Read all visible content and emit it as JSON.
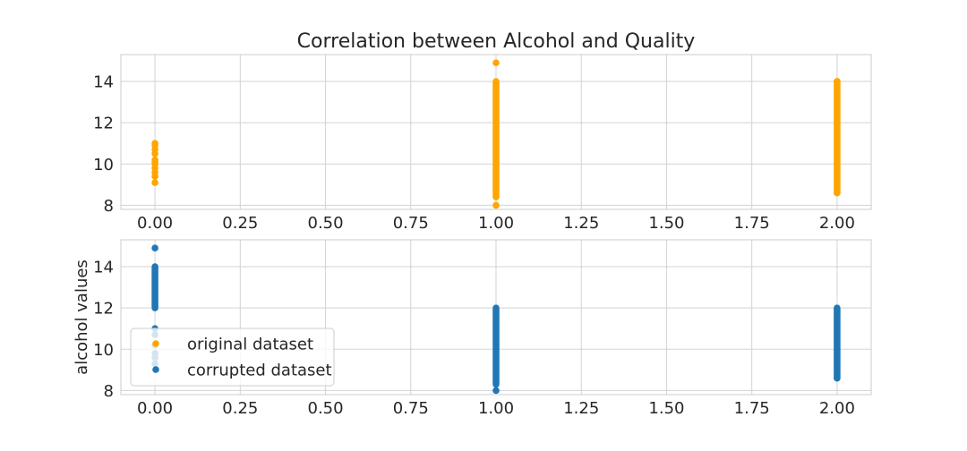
{
  "chart_data": {
    "type": "scatter",
    "title": "Correlation between Alcohol and Quality",
    "grid": true,
    "colors": {
      "original": "#ffa500",
      "corrupted": "#1f77b4"
    },
    "panels": [
      {
        "id": "top",
        "xlim": [
          -0.1,
          2.1
        ],
        "ylim": [
          7.8,
          15.3
        ],
        "xticks": [
          0,
          0.25,
          0.5,
          0.75,
          1,
          1.25,
          1.5,
          1.75,
          2
        ],
        "xtick_labels": [
          "0.00",
          "0.25",
          "0.50",
          "0.75",
          "1.00",
          "1.25",
          "1.50",
          "1.75",
          "2.00"
        ],
        "yticks": [
          8,
          10,
          12,
          14
        ],
        "ytick_labels": [
          "8",
          "10",
          "12",
          "14"
        ],
        "ylabel": "",
        "series": [
          {
            "name": "original dataset",
            "color": "#ffa500",
            "points": [
              [
                0,
                9.1
              ],
              [
                0,
                9.4
              ],
              [
                0,
                9.6
              ],
              [
                0,
                9.8
              ],
              [
                0,
                10.0
              ],
              [
                0,
                10.1
              ],
              [
                0,
                10.2
              ],
              [
                0,
                10.5
              ],
              [
                0,
                10.7
              ],
              [
                0,
                10.9
              ],
              [
                0,
                11.0
              ],
              [
                1,
                8.0
              ],
              [
                1,
                14.9
              ],
              [
                2,
                8.6
              ],
              [
                2,
                14.0
              ]
            ],
            "bands": [
              {
                "x": 1,
                "y_min": 8.4,
                "y_max": 14.0
              },
              {
                "x": 2,
                "y_min": 8.6,
                "y_max": 14.0
              }
            ]
          }
        ]
      },
      {
        "id": "bottom",
        "xlim": [
          -0.1,
          2.1
        ],
        "ylim": [
          7.8,
          15.3
        ],
        "xticks": [
          0,
          0.25,
          0.5,
          0.75,
          1,
          1.25,
          1.5,
          1.75,
          2
        ],
        "xtick_labels": [
          "0.00",
          "0.25",
          "0.50",
          "0.75",
          "1.00",
          "1.25",
          "1.50",
          "1.75",
          "2.00"
        ],
        "yticks": [
          8,
          10,
          12,
          14
        ],
        "ytick_labels": [
          "8",
          "10",
          "12",
          "14"
        ],
        "ylabel": "alcohol values",
        "series": [
          {
            "name": "corrupted dataset",
            "color": "#1f77b4",
            "points": [
              [
                0,
                14.9
              ],
              [
                0,
                11.0
              ],
              [
                0,
                10.7
              ],
              [
                0,
                10.2
              ],
              [
                0,
                9.8
              ],
              [
                0,
                9.6
              ],
              [
                0,
                9.3
              ],
              [
                1,
                8.0
              ],
              [
                2,
                8.6
              ]
            ],
            "bands": [
              {
                "x": 0,
                "y_min": 12.0,
                "y_max": 14.0
              },
              {
                "x": 1,
                "y_min": 8.3,
                "y_max": 12.0
              },
              {
                "x": 2,
                "y_min": 8.6,
                "y_max": 12.0
              }
            ]
          }
        ]
      }
    ],
    "legend": {
      "panel": "bottom",
      "location": "lower-left",
      "entries": [
        {
          "label": "original dataset",
          "color": "#ffa500"
        },
        {
          "label": "corrupted dataset",
          "color": "#1f77b4"
        }
      ]
    }
  }
}
